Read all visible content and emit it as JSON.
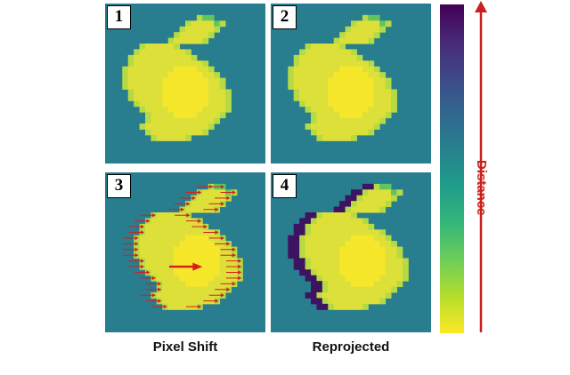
{
  "panels": [
    {
      "label": "1",
      "mode": "plain"
    },
    {
      "label": "2",
      "mode": "plain"
    },
    {
      "label": "3",
      "mode": "shift"
    },
    {
      "label": "4",
      "mode": "reproj"
    }
  ],
  "captions": {
    "left": "Pixel Shift",
    "right": "Reprojected"
  },
  "colorbar": {
    "label": "Distance",
    "stops": [
      "#fde725",
      "#b5de2b",
      "#6ece58",
      "#35b779",
      "#1f9e89",
      "#26828e",
      "#31688e",
      "#3e4989",
      "#482878",
      "#440154"
    ]
  },
  "colors": {
    "background": "#287d8e",
    "bunny": "#dee03a",
    "bunny_center": "#f6e72b",
    "bunny_edge": "#b6da43",
    "ear_tip": "#5fc55e",
    "shadow": "#3e1362",
    "arrow": "#d81c1c",
    "distance_label": "#cc1f1f"
  },
  "shape": {
    "grid": 28,
    "rows": [
      [
        2,
        16,
        18
      ],
      [
        3,
        14,
        20
      ],
      [
        4,
        13,
        19
      ],
      [
        5,
        12,
        18
      ],
      [
        6,
        11,
        17
      ],
      [
        7,
        6,
        12
      ],
      [
        8,
        5,
        14
      ],
      [
        9,
        4,
        15
      ],
      [
        10,
        4,
        17
      ],
      [
        11,
        3,
        18
      ],
      [
        12,
        3,
        19
      ],
      [
        13,
        3,
        20
      ],
      [
        14,
        3,
        20
      ],
      [
        15,
        4,
        21
      ],
      [
        16,
        4,
        21
      ],
      [
        17,
        5,
        21
      ],
      [
        18,
        6,
        21
      ],
      [
        19,
        7,
        20
      ],
      [
        20,
        7,
        19
      ],
      [
        21,
        6,
        18
      ],
      [
        22,
        7,
        17
      ],
      [
        23,
        8,
        14
      ]
    ],
    "ear_tip_cells": [
      [
        2,
        17
      ],
      [
        2,
        18
      ],
      [
        3,
        19
      ]
    ],
    "shift_cells": 2
  }
}
